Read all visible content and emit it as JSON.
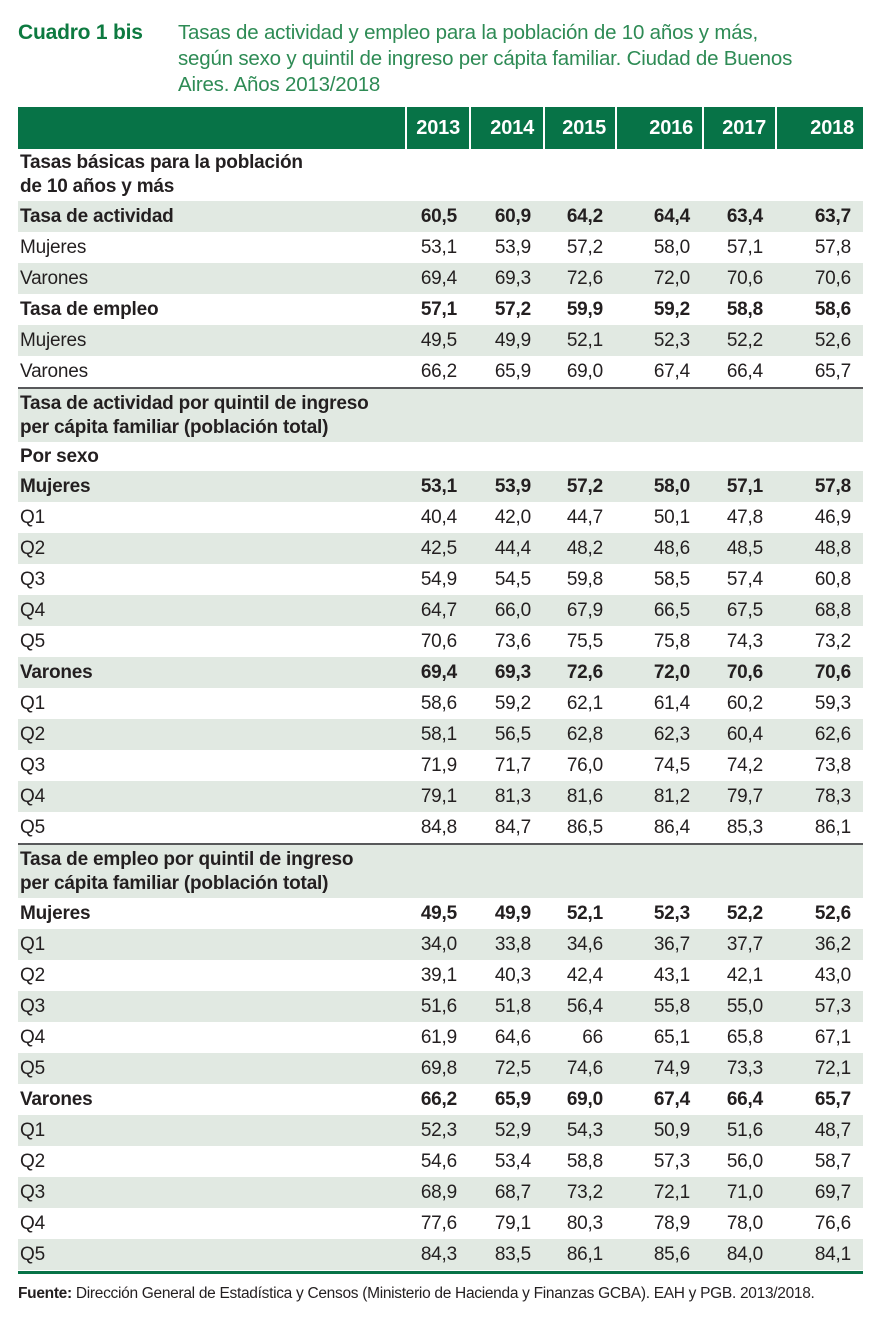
{
  "header": {
    "label": "Cuadro 1 bis",
    "description_lines": [
      "Tasas de actividad y empleo para la población de 10 años y más,",
      "según sexo y quintil de ingreso per cápita familiar. Ciudad de Buenos",
      "Aires. Años 2013/2018"
    ]
  },
  "colors": {
    "header_green": "#077347",
    "title_green": "#0d7a40",
    "description_green": "#2e8b55",
    "row_light_green": "#e1e9e2",
    "section_rule_gray": "#58595b",
    "text": "#231f20"
  },
  "table": {
    "columns": [
      "2013",
      "2014",
      "2015",
      "2016",
      "2017",
      "2018"
    ],
    "rows": [
      {
        "label": "Tasas básicas para la población",
        "label2": "de 10 años y más",
        "section": true,
        "first": true,
        "bold": true,
        "bg": "white",
        "topline": false,
        "values": null
      },
      {
        "label": "Tasa de actividad",
        "bold": true,
        "bg": "green",
        "values": [
          "60,5",
          "60,9",
          "64,2",
          "64,4",
          "63,4",
          "63,7"
        ]
      },
      {
        "label": "Mujeres",
        "bold": false,
        "bg": "white",
        "values": [
          "53,1",
          "53,9",
          "57,2",
          "58,0",
          "57,1",
          "57,8"
        ]
      },
      {
        "label": "Varones",
        "bold": false,
        "bg": "green",
        "values": [
          "69,4",
          "69,3",
          "72,6",
          "72,0",
          "70,6",
          "70,6"
        ]
      },
      {
        "label": "Tasa de empleo",
        "bold": true,
        "bg": "white",
        "values": [
          "57,1",
          "57,2",
          "59,9",
          "59,2",
          "58,8",
          "58,6"
        ]
      },
      {
        "label": "Mujeres",
        "bold": false,
        "bg": "green",
        "values": [
          "49,5",
          "49,9",
          "52,1",
          "52,3",
          "52,2",
          "52,6"
        ]
      },
      {
        "label": "Varones",
        "bold": false,
        "bg": "white",
        "values": [
          "66,2",
          "65,9",
          "69,0",
          "67,4",
          "66,4",
          "65,7"
        ]
      },
      {
        "label": "Tasa de actividad por quintil de ingreso",
        "label2": "per cápita familiar (población total)",
        "section": true,
        "bold": true,
        "bg": "green",
        "topline": true,
        "values": null
      },
      {
        "label": "Por sexo",
        "porsexo": true,
        "bold": true,
        "bg": "white",
        "values": null
      },
      {
        "label": "Mujeres",
        "bold": true,
        "bg": "green",
        "values": [
          "53,1",
          "53,9",
          "57,2",
          "58,0",
          "57,1",
          "57,8"
        ]
      },
      {
        "label": "Q1",
        "bold": false,
        "bg": "white",
        "values": [
          "40,4",
          "42,0",
          "44,7",
          "50,1",
          "47,8",
          "46,9"
        ]
      },
      {
        "label": "Q2",
        "bold": false,
        "bg": "green",
        "values": [
          "42,5",
          "44,4",
          "48,2",
          "48,6",
          "48,5",
          "48,8"
        ]
      },
      {
        "label": "Q3",
        "bold": false,
        "bg": "white",
        "values": [
          "54,9",
          "54,5",
          "59,8",
          "58,5",
          "57,4",
          "60,8"
        ]
      },
      {
        "label": "Q4",
        "bold": false,
        "bg": "green",
        "values": [
          "64,7",
          "66,0",
          "67,9",
          "66,5",
          "67,5",
          "68,8"
        ]
      },
      {
        "label": "Q5",
        "bold": false,
        "bg": "white",
        "values": [
          "70,6",
          "73,6",
          "75,5",
          "75,8",
          "74,3",
          "73,2"
        ]
      },
      {
        "label": "Varones",
        "bold": true,
        "bg": "green",
        "values": [
          "69,4",
          "69,3",
          "72,6",
          "72,0",
          "70,6",
          "70,6"
        ]
      },
      {
        "label": "Q1",
        "bold": false,
        "bg": "white",
        "values": [
          "58,6",
          "59,2",
          "62,1",
          "61,4",
          "60,2",
          "59,3"
        ]
      },
      {
        "label": "Q2",
        "bold": false,
        "bg": "green",
        "values": [
          "58,1",
          "56,5",
          "62,8",
          "62,3",
          "60,4",
          "62,6"
        ]
      },
      {
        "label": "Q3",
        "bold": false,
        "bg": "white",
        "values": [
          "71,9",
          "71,7",
          "76,0",
          "74,5",
          "74,2",
          "73,8"
        ]
      },
      {
        "label": "Q4",
        "bold": false,
        "bg": "green",
        "values": [
          "79,1",
          "81,3",
          "81,6",
          "81,2",
          "79,7",
          "78,3"
        ]
      },
      {
        "label": "Q5",
        "bold": false,
        "bg": "white",
        "values": [
          "84,8",
          "84,7",
          "86,5",
          "86,4",
          "85,3",
          "86,1"
        ]
      },
      {
        "label": "Tasa de empleo por quintil de ingreso",
        "label2": "per cápita familiar (población total)",
        "section": true,
        "bold": true,
        "bg": "green",
        "topline": true,
        "values": null
      },
      {
        "label": "Mujeres",
        "bold": true,
        "bg": "white",
        "values": [
          "49,5",
          "49,9",
          "52,1",
          "52,3",
          "52,2",
          "52,6"
        ]
      },
      {
        "label": "Q1",
        "bold": false,
        "bg": "green",
        "values": [
          "34,0",
          "33,8",
          "34,6",
          "36,7",
          "37,7",
          "36,2"
        ]
      },
      {
        "label": "Q2",
        "bold": false,
        "bg": "white",
        "values": [
          "39,1",
          "40,3",
          "42,4",
          "43,1",
          "42,1",
          "43,0"
        ]
      },
      {
        "label": "Q3",
        "bold": false,
        "bg": "green",
        "values": [
          "51,6",
          "51,8",
          "56,4",
          "55,8",
          "55,0",
          "57,3"
        ]
      },
      {
        "label": "Q4",
        "bold": false,
        "bg": "white",
        "values": [
          "61,9",
          "64,6",
          "66",
          "65,1",
          "65,8",
          "67,1"
        ]
      },
      {
        "label": "Q5",
        "bold": false,
        "bg": "green",
        "values": [
          "69,8",
          "72,5",
          "74,6",
          "74,9",
          "73,3",
          "72,1"
        ]
      },
      {
        "label": "Varones",
        "bold": true,
        "bg": "white",
        "values": [
          "66,2",
          "65,9",
          "69,0",
          "67,4",
          "66,4",
          "65,7"
        ]
      },
      {
        "label": "Q1",
        "bold": false,
        "bg": "green",
        "values": [
          "52,3",
          "52,9",
          "54,3",
          "50,9",
          "51,6",
          "48,7"
        ]
      },
      {
        "label": "Q2",
        "bold": false,
        "bg": "white",
        "values": [
          "54,6",
          "53,4",
          "58,8",
          "57,3",
          "56,0",
          "58,7"
        ]
      },
      {
        "label": "Q3",
        "bold": false,
        "bg": "green",
        "values": [
          "68,9",
          "68,7",
          "73,2",
          "72,1",
          "71,0",
          "69,7"
        ]
      },
      {
        "label": "Q4",
        "bold": false,
        "bg": "white",
        "values": [
          "77,6",
          "79,1",
          "80,3",
          "78,9",
          "78,0",
          "76,6"
        ]
      },
      {
        "label": "Q5",
        "bold": false,
        "bg": "green",
        "values": [
          "84,3",
          "83,5",
          "86,1",
          "85,6",
          "84,0",
          "84,1"
        ]
      }
    ]
  },
  "footer": {
    "label": "Fuente:",
    "text": "Dirección General de Estadística y Censos (Ministerio de Hacienda y Finanzas GCBA). EAH y PGB. 2013/2018."
  }
}
